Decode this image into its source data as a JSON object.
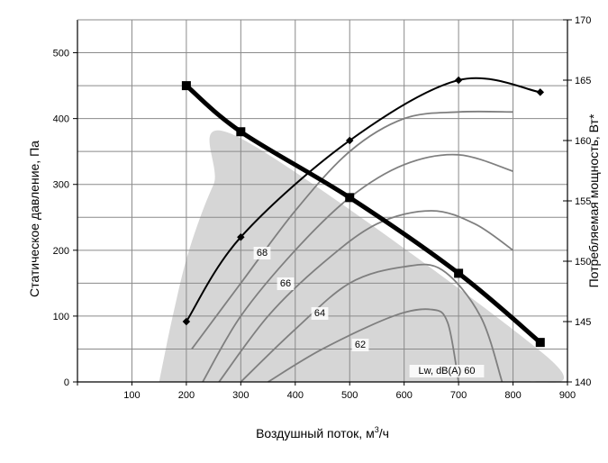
{
  "chart_data": {
    "type": "line",
    "xlabel_prefix": "Воздушный поток, м",
    "xlabel_sup": "3",
    "xlabel_suffix": "/ч",
    "ylabel": "Статическое давление, Па",
    "y2label": "Потребляемая мощность, Вт*",
    "xlim": [
      0,
      900
    ],
    "ylim": [
      0,
      550
    ],
    "y2lim": [
      140,
      170
    ],
    "x_ticks": [
      "0",
      "100",
      "200",
      "300",
      "400",
      "500",
      "600",
      "700",
      "800",
      "900"
    ],
    "y_ticks": [
      "0",
      "100",
      "200",
      "300",
      "400",
      "500"
    ],
    "y2_ticks": [
      "140",
      "145",
      "150",
      "155",
      "160",
      "165",
      "170"
    ],
    "grid": true,
    "operating_area": [
      [
        150,
        0
      ],
      [
        175,
        100
      ],
      [
        205,
        200
      ],
      [
        250,
        300
      ],
      [
        300,
        370
      ],
      [
        860,
        40
      ],
      [
        830,
        0
      ]
    ],
    "pressure_curve": [
      [
        200,
        450
      ],
      [
        300,
        380
      ],
      [
        500,
        280
      ],
      [
        700,
        165
      ],
      [
        850,
        60
      ]
    ],
    "power_curve": [
      [
        200,
        145
      ],
      [
        300,
        152
      ],
      [
        500,
        160
      ],
      [
        700,
        165
      ],
      [
        850,
        164
      ]
    ],
    "noise_lines": [
      {
        "label": "Lw, dB(A) 60",
        "points": [
          [
            350,
            0
          ],
          [
            450,
            50
          ],
          [
            580,
            100
          ],
          [
            650,
            110
          ],
          [
            680,
            90
          ],
          [
            700,
            0
          ]
        ]
      },
      {
        "label": "62",
        "points": [
          [
            300,
            0
          ],
          [
            400,
            80
          ],
          [
            500,
            150
          ],
          [
            600,
            175
          ],
          [
            670,
            170
          ],
          [
            740,
            100
          ],
          [
            780,
            0
          ]
        ]
      },
      {
        "label": "64",
        "points": [
          [
            260,
            0
          ],
          [
            350,
            100
          ],
          [
            450,
            180
          ],
          [
            550,
            240
          ],
          [
            650,
            260
          ],
          [
            730,
            240
          ],
          [
            800,
            200
          ]
        ]
      },
      {
        "label": "66",
        "points": [
          [
            230,
            0
          ],
          [
            300,
            100
          ],
          [
            400,
            200
          ],
          [
            500,
            280
          ],
          [
            600,
            330
          ],
          [
            700,
            345
          ],
          [
            800,
            320
          ]
        ]
      },
      {
        "label": "68",
        "points": [
          [
            210,
            50
          ],
          [
            300,
            150
          ],
          [
            400,
            260
          ],
          [
            500,
            350
          ],
          [
            600,
            400
          ],
          [
            700,
            410
          ],
          [
            800,
            410
          ]
        ]
      }
    ]
  }
}
